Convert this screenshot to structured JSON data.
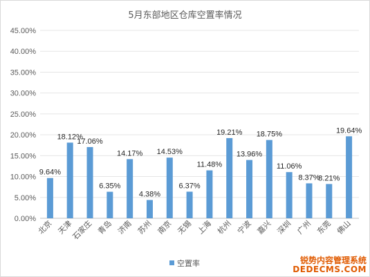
{
  "chart_data": {
    "type": "bar",
    "title": "5月东部地区仓库空置率情况",
    "xlabel": "",
    "ylabel": "",
    "ylim": [
      0,
      45
    ],
    "yticks": [
      "0.00%",
      "5.00%",
      "10.00%",
      "15.00%",
      "20.00%",
      "25.00%",
      "30.00%",
      "35.00%",
      "40.00%",
      "45.00%"
    ],
    "grid": true,
    "legend": "bottom",
    "color": "#5b9bd5",
    "categories": [
      "北京",
      "天津",
      "石家庄",
      "青岛",
      "济南",
      "苏州",
      "南京",
      "无锡",
      "上海",
      "杭州",
      "宁波",
      "嘉兴",
      "深圳",
      "广州",
      "东莞",
      "佛山"
    ],
    "series": [
      {
        "name": "空置率",
        "values": [
          9.64,
          18.12,
          17.06,
          6.35,
          14.17,
          4.38,
          14.53,
          6.37,
          11.48,
          19.21,
          13.96,
          18.75,
          11.06,
          8.37,
          8.21,
          19.64
        ],
        "labels": [
          "9.64%",
          "18.12%",
          "17.06%",
          "6.35%",
          "14.17%",
          "4.38%",
          "14.53%",
          "6.37%",
          "11.48%",
          "19.21%",
          "13.96%",
          "18.75%",
          "11.06%",
          "8.37%",
          "8.21%",
          "19.64%"
        ]
      }
    ]
  },
  "watermark": {
    "line1": "锐势内容管理系统",
    "line2": "DEDECMS.COM"
  }
}
